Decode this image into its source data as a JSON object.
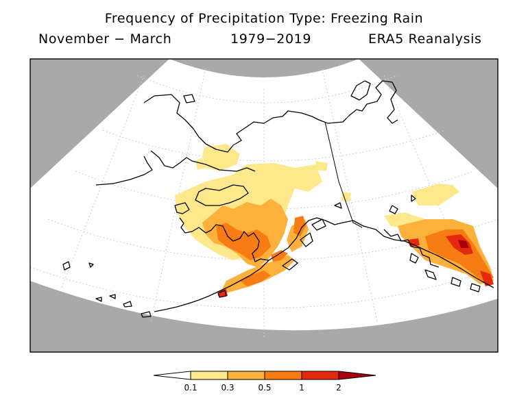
{
  "title": "Frequency of Precipitation Type: Freezing Rain",
  "subtitle": {
    "season": "November − March",
    "period": "1979−2019",
    "source": "ERA5 Reanalysis"
  },
  "colors": {
    "background_gray": "#a9a9a9",
    "land_outline": "#000000",
    "graticule": "#cfcfcf"
  },
  "legend": {
    "ticks": [
      "0.1",
      "0.3",
      "0.5",
      "1",
      "2"
    ],
    "bins": [
      {
        "lower": "",
        "upper": "0.1",
        "color": "#ffffff"
      },
      {
        "lower": "0.1",
        "upper": "0.3",
        "color": "#fde98b"
      },
      {
        "lower": "0.3",
        "upper": "0.5",
        "color": "#fbb13c"
      },
      {
        "lower": "0.5",
        "upper": "1",
        "color": "#f77c14"
      },
      {
        "lower": "1",
        "upper": "2",
        "color": "#e4290e"
      },
      {
        "lower": "2",
        "upper": "",
        "color": "#a9000f"
      }
    ]
  }
}
